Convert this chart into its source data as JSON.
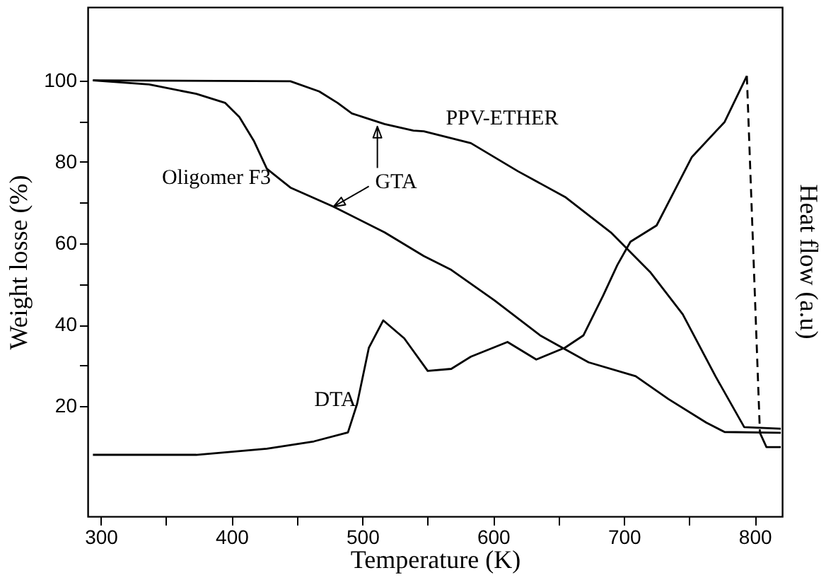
{
  "chart_data": {
    "type": "line",
    "xlabel": "Temperature (K)",
    "ylabel": "Weight losse (%)",
    "y2label": "Heat flow (a.u)",
    "xlim": [
      290,
      821
    ],
    "ylim": [
      -7,
      118
    ],
    "xticks": [
      300,
      {
        "value": 350,
        "label": null
      },
      400,
      {
        "value": 450,
        "label": null
      },
      500,
      {
        "value": 550,
        "label": null
      },
      600,
      {
        "value": 650,
        "label": null
      },
      700,
      {
        "value": 750,
        "label": null
      },
      800
    ],
    "yticks": [
      20,
      {
        "value": 30,
        "label": null
      },
      40,
      {
        "value": 50,
        "label": null
      },
      60,
      {
        "value": 70,
        "label": null
      },
      80,
      {
        "value": 90,
        "label": null
      },
      100
    ],
    "grid": false,
    "marker": "none",
    "line_style": "solid",
    "series": [
      {
        "name": "Oligomer F3",
        "color": "#000000",
        "x": [
          294,
          337,
          373,
          395,
          406,
          417,
          427,
          445,
          478,
          517,
          547,
          568,
          601,
          636,
          673,
          709,
          734,
          763,
          777,
          820
        ],
        "values": [
          100,
          99,
          96.7,
          94.5,
          91,
          85.2,
          78.3,
          73.7,
          69,
          62.7,
          56.9,
          53.5,
          46,
          37.4,
          30.8,
          27.4,
          21.8,
          16,
          13.7,
          13.5
        ]
      },
      {
        "name": "PPV-ETHER",
        "color": "#000000",
        "x": [
          294,
          445,
          467,
          481,
          492,
          517,
          539,
          547,
          583,
          619,
          655,
          690,
          720,
          745,
          770,
          792,
          820
        ],
        "values": [
          100,
          99.8,
          97.3,
          94.5,
          91.9,
          89.3,
          87.7,
          87.5,
          84.6,
          77.7,
          71.4,
          62.7,
          53,
          42.6,
          27.4,
          14.9,
          14.5
        ]
      },
      {
        "name": "DTA",
        "color": "#000000",
        "x": [
          294,
          373,
          427,
          463,
          489,
          496,
          505,
          516,
          532,
          550,
          568,
          583,
          611,
          633,
          655,
          669,
          684,
          695,
          705,
          725,
          738,
          752,
          777,
          794
        ],
        "values": [
          8.1,
          8.1,
          9.6,
          11.4,
          13.6,
          20.6,
          34.4,
          41.1,
          36.7,
          28.7,
          29.2,
          32.2,
          35.8,
          31.5,
          34.4,
          37.4,
          47.1,
          54.7,
          60.4,
          64.4,
          72.5,
          81.2,
          89.8,
          101.1
        ]
      },
      {
        "color": "#000000",
        "line_style": "dashed",
        "x": [
          794,
          804
        ],
        "values": [
          101.1,
          13.5
        ]
      },
      {
        "color": "#000000",
        "x": [
          804,
          809,
          820
        ],
        "values": [
          13.5,
          10,
          10
        ]
      }
    ],
    "annotations": [
      {
        "text": "GTA",
        "x": 511.5,
        "y": 88.7
      }
    ]
  }
}
